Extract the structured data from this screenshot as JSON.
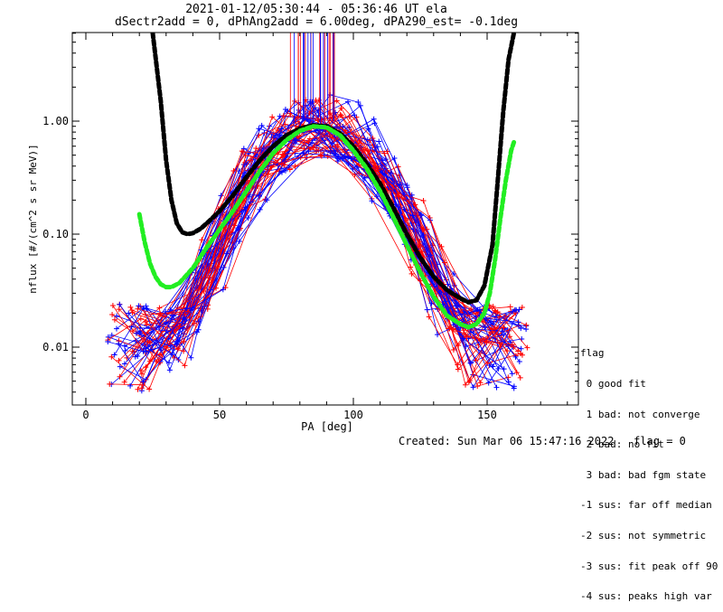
{
  "chart_data": {
    "type": "line",
    "title": "2021-01-12/05:30:44 - 05:36:46 UT ela",
    "subtitle": "dSectr2add = 0, dPhAng2add = 6.00deg, dPA290_est=  -0.1deg",
    "xlabel": "PA [deg]",
    "ylabel": "nflux [#/(cm^2 s sr MeV)]",
    "xlim": [
      -10,
      185
    ],
    "ylim": [
      0.003,
      6.0
    ],
    "yscale": "log",
    "xticks": [
      0,
      50,
      100,
      150
    ],
    "xtick_labels": [
      "0",
      "50",
      "100",
      "150"
    ],
    "yticks": [
      0.01,
      0.1,
      1.0
    ],
    "ytick_labels": [
      "0.01",
      "0.10",
      "1.00"
    ],
    "grid": false,
    "colors": {
      "black_fit": "#000000",
      "green_fit": "#22ee22",
      "red": "#ff0000",
      "blue": "#0000ff"
    },
    "series": [
      {
        "color": "#000000",
        "style": "thick-dashed",
        "x": [
          25,
          28,
          30,
          32,
          34,
          36,
          38,
          40,
          43,
          46,
          50,
          55,
          60,
          65,
          70,
          75,
          80,
          85,
          90,
          95,
          100,
          105,
          110,
          115,
          120,
          125,
          130,
          135,
          140,
          143,
          146,
          149,
          152,
          154,
          156,
          158,
          160
        ],
        "y": [
          6.0,
          1.5,
          0.45,
          0.2,
          0.125,
          0.104,
          0.1,
          0.102,
          0.112,
          0.13,
          0.16,
          0.22,
          0.32,
          0.45,
          0.6,
          0.75,
          0.86,
          0.92,
          0.9,
          0.78,
          0.6,
          0.42,
          0.28,
          0.17,
          0.1,
          0.062,
          0.042,
          0.032,
          0.027,
          0.025,
          0.026,
          0.035,
          0.08,
          0.3,
          1.2,
          3.5,
          6.0
        ]
      },
      {
        "color": "#22ee22",
        "style": "thick-dashed",
        "x": [
          20,
          22,
          24,
          26,
          28,
          30,
          32,
          35,
          40,
          45,
          50,
          55,
          60,
          65,
          70,
          75,
          80,
          85,
          90,
          95,
          100,
          105,
          110,
          115,
          120,
          125,
          130,
          135,
          140,
          143,
          146,
          149,
          151,
          153,
          155,
          157,
          159,
          160
        ],
        "y": [
          0.15,
          0.085,
          0.055,
          0.042,
          0.036,
          0.034,
          0.034,
          0.037,
          0.05,
          0.075,
          0.11,
          0.16,
          0.24,
          0.36,
          0.52,
          0.68,
          0.82,
          0.9,
          0.88,
          0.75,
          0.55,
          0.38,
          0.24,
          0.14,
          0.08,
          0.046,
          0.028,
          0.019,
          0.016,
          0.015,
          0.016,
          0.02,
          0.03,
          0.06,
          0.14,
          0.3,
          0.55,
          0.65
        ]
      }
    ]
  },
  "flags": {
    "title": "flag",
    "items": [
      " 0 good fit",
      " 1 bad: not converge",
      " 2 bad: no fit",
      " 3 bad: bad fgm state",
      "-1 sus: far off median",
      "-2 sus: not symmetric",
      "-3 sus: fit peak off 90",
      "-4 sus: peaks high var"
    ]
  },
  "footer": {
    "created": "Created: Sun Mar 06 15:47:16 2022",
    "flag": "flag = 0"
  }
}
